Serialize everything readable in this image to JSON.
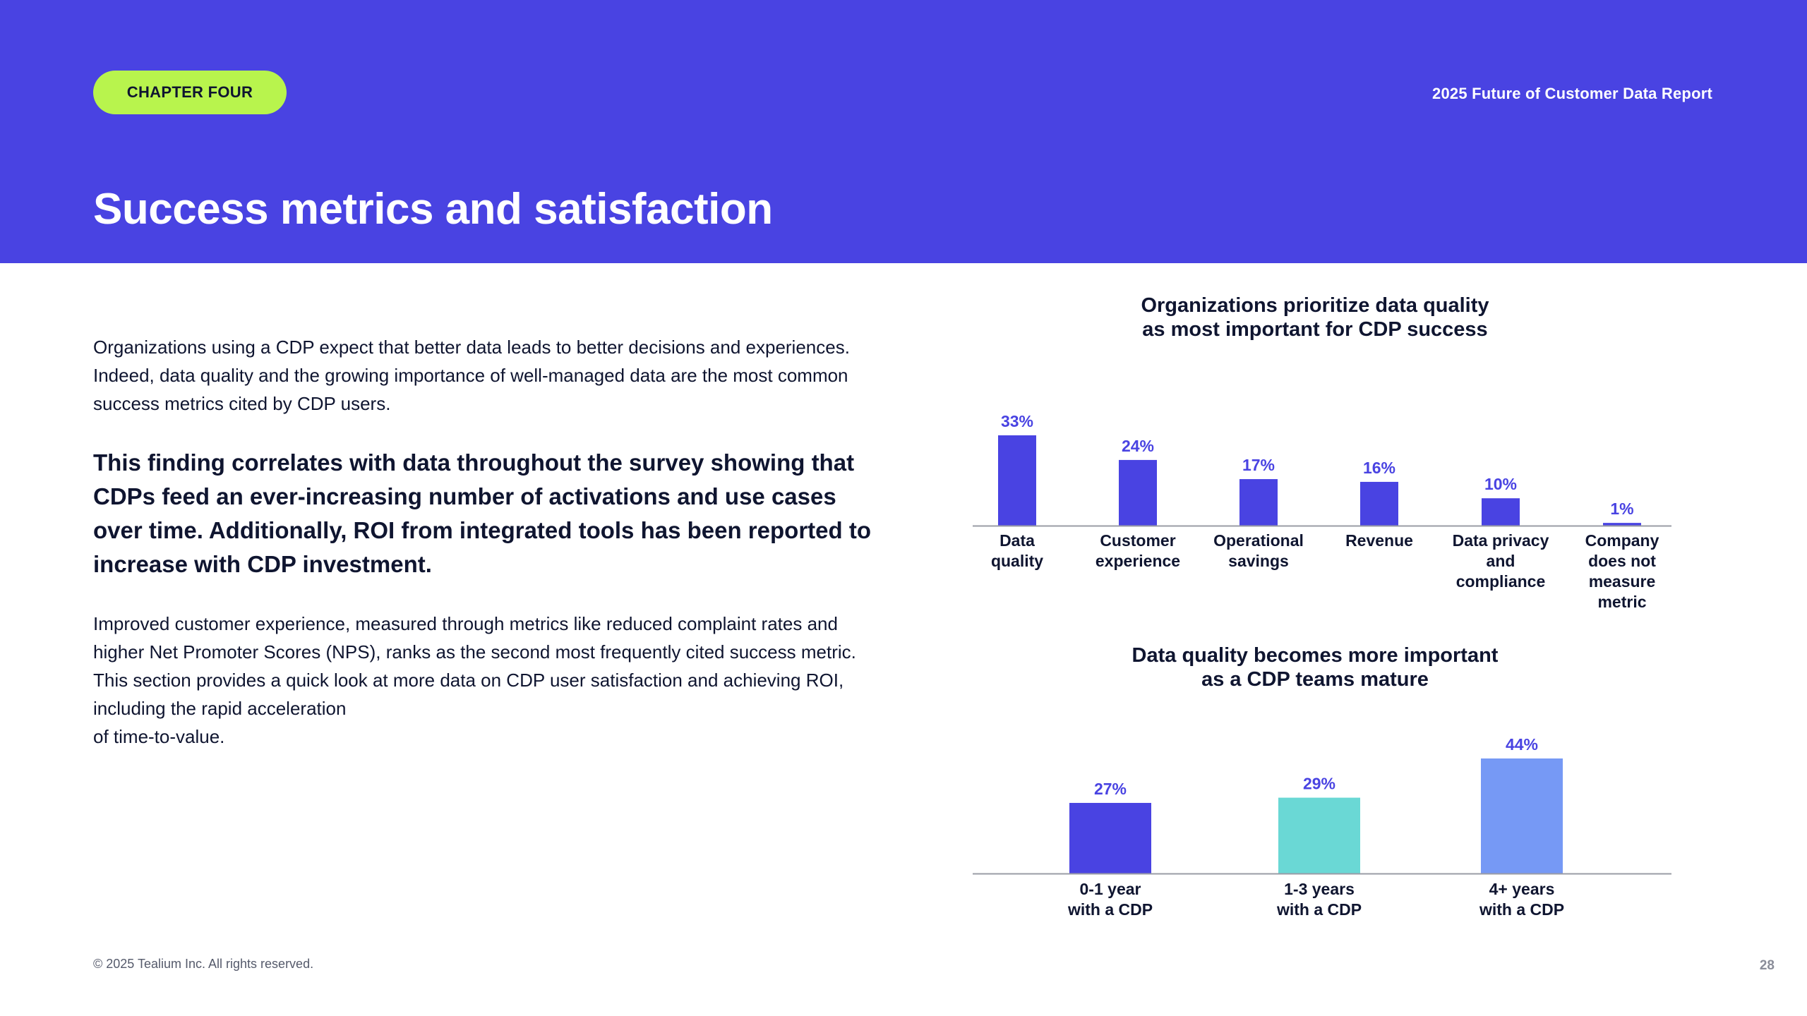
{
  "header": {
    "chapter": "CHAPTER FOUR",
    "report_title": "2025 Future of Customer Data Report",
    "page_title": "Success metrics and satisfaction"
  },
  "body": {
    "intro": "Organizations using a CDP expect that better data leads to better decisions and experiences. Indeed, data quality and the growing importance of well-managed data are the most common success metrics cited by CDP users.",
    "highlight": "This finding correlates with data throughout the survey showing that CDPs feed an ever-increasing number of activations and use cases over time. Additionally, ROI from integrated tools has been reported to increase with CDP investment.",
    "paragraph2": "Improved customer experience, measured through metrics like reduced complaint rates and higher Net Promoter Scores (NPS), ranks as the second most frequently cited success metric. This section provides a quick look at more data on CDP user satisfaction and achieving ROI, including the rapid acceleration\nof time-to-value."
  },
  "colors": {
    "brand": "#4943e2",
    "accent_green": "#b8f44d",
    "teal": "#6ad8d5",
    "light_blue": "#7699f5",
    "axis": "#9a9ca6"
  },
  "chart_data": [
    {
      "type": "bar",
      "title": "Organizations prioritize data quality\nas most important for CDP success",
      "categories": [
        [
          "Data",
          "quality"
        ],
        [
          "Customer",
          "experience"
        ],
        [
          "Operational",
          "savings"
        ],
        [
          "Revenue"
        ],
        [
          "Data privacy",
          "and",
          "compliance"
        ],
        [
          "Company",
          "does not",
          "measure",
          "metric"
        ]
      ],
      "values": [
        33,
        24,
        17,
        16,
        10,
        1
      ],
      "value_labels": [
        "33%",
        "24%",
        "17%",
        "16%",
        "10%",
        "1%"
      ],
      "bar_colors": [
        "#4943e2",
        "#4943e2",
        "#4943e2",
        "#4943e2",
        "#4943e2",
        "#4943e2"
      ],
      "unit": "%",
      "ylim": [
        0,
        33
      ]
    },
    {
      "type": "bar",
      "title": "Data quality becomes more important\nas a CDP teams mature",
      "categories": [
        [
          "0-1 year",
          "with a CDP"
        ],
        [
          "1-3 years",
          "with a CDP"
        ],
        [
          "4+ years",
          "with a CDP"
        ]
      ],
      "values": [
        27,
        29,
        44
      ],
      "value_labels": [
        "27%",
        "29%",
        "44%"
      ],
      "bar_colors": [
        "#4943e2",
        "#6ad8d5",
        "#7699f5"
      ],
      "unit": "%",
      "ylim": [
        0,
        44
      ]
    }
  ],
  "footer": {
    "copyright": "© 2025 Tealium Inc. All rights reserved.",
    "page_number": "28"
  }
}
